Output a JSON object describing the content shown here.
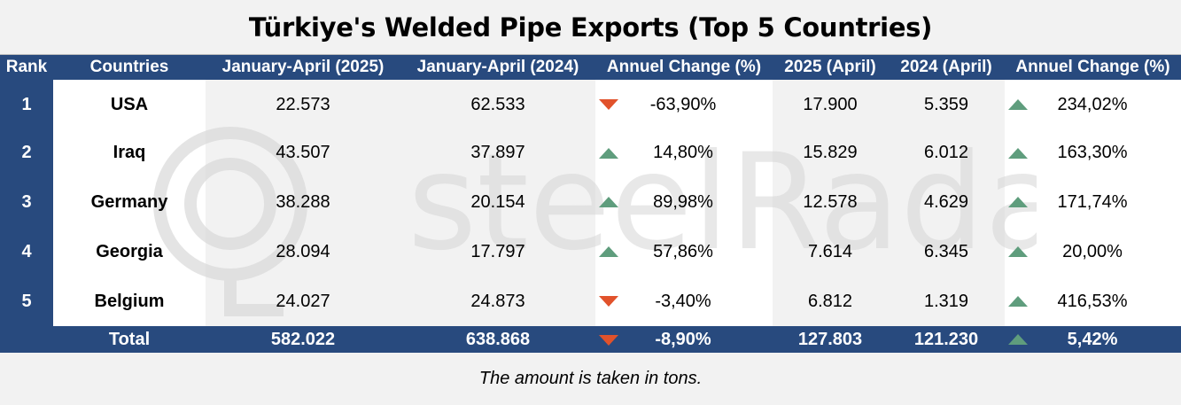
{
  "title": "Türkiye's  Welded Pipe Exports (Top 5 Countries)",
  "headers": [
    "Rank",
    "Countries",
    "January-April (2025)",
    "January-April (2024)",
    "Annuel Change (%)",
    "2025 (April)",
    "2024 (April)",
    "Annuel Change (%)"
  ],
  "rows": [
    {
      "rank": "1",
      "country": "USA",
      "ja2025": "22.573",
      "ja2024": "62.533",
      "change1": "-63,90%",
      "trend1": "down",
      "apr2025": "17.900",
      "apr2024": "5.359",
      "change2": "234,02%",
      "trend2": "up"
    },
    {
      "rank": "2",
      "country": "Iraq",
      "ja2025": "43.507",
      "ja2024": "37.897",
      "change1": "14,80%",
      "trend1": "up",
      "apr2025": "15.829",
      "apr2024": "6.012",
      "change2": "163,30%",
      "trend2": "up"
    },
    {
      "rank": "3",
      "country": "Germany",
      "ja2025": "38.288",
      "ja2024": "20.154",
      "change1": "89,98%",
      "trend1": "up",
      "apr2025": "12.578",
      "apr2024": "4.629",
      "change2": "171,74%",
      "trend2": "up"
    },
    {
      "rank": "4",
      "country": "Georgia",
      "ja2025": "28.094",
      "ja2024": "17.797",
      "change1": "57,86%",
      "trend1": "up",
      "apr2025": "7.614",
      "apr2024": "6.345",
      "change2": "20,00%",
      "trend2": "up"
    },
    {
      "rank": "5",
      "country": "Belgium",
      "ja2025": "24.027",
      "ja2024": "24.873",
      "change1": "-3,40%",
      "trend1": "down",
      "apr2025": "6.812",
      "apr2024": "1.319",
      "change2": "416,53%",
      "trend2": "up"
    }
  ],
  "total": {
    "label": "Total",
    "ja2025": "582.022",
    "ja2024": "638.868",
    "change1": "-8,90%",
    "trend1": "down",
    "apr2025": "127.803",
    "apr2024": "121.230",
    "change2": "5,42%",
    "trend2": "up"
  },
  "note": "The amount is taken in tons.",
  "watermark": "steelRadar",
  "colors": {
    "header": "#284a7e",
    "up": "#5f9d7d",
    "down": "#e1522b"
  }
}
